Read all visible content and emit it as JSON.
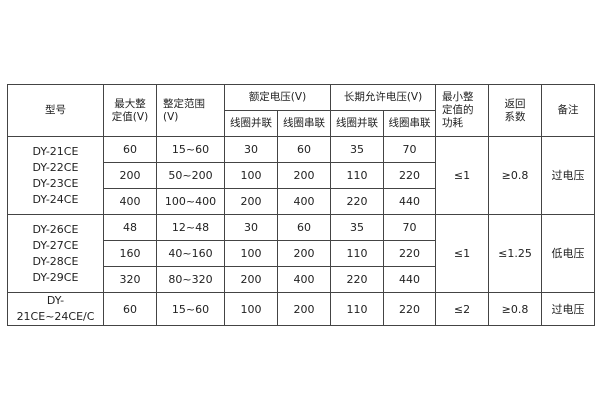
{
  "header": {
    "model": "型号",
    "max_setting": [
      "最大整",
      "定值(V)"
    ],
    "setting_range": [
      "整定范围",
      "(V)"
    ],
    "rated_voltage": "额定电压(V)",
    "long_term_voltage": "长期允许电压(V)",
    "parallel": "线圈并联",
    "series": "线圈串联",
    "min_power": [
      "最小整",
      "定值的",
      "功耗"
    ],
    "return_coef": [
      "返回",
      "系数"
    ],
    "remark": "备注"
  },
  "groups": [
    {
      "models": [
        "DY-21CE",
        "DY-22CE",
        "DY-23CE",
        "DY-24CE"
      ],
      "power": "≤1",
      "coef": "≥0.8",
      "remark": "过电压",
      "rows": [
        [
          "60",
          "15~60",
          "30",
          "60",
          "35",
          "70"
        ],
        [
          "200",
          "50~200",
          "100",
          "200",
          "110",
          "220"
        ],
        [
          "400",
          "100~400",
          "200",
          "400",
          "220",
          "440"
        ]
      ]
    },
    {
      "models": [
        "DY-26CE",
        "DY-27CE",
        "DY-28CE",
        "DY-29CE"
      ],
      "power": "≤1",
      "coef": "≤1.25",
      "remark": "低电压",
      "rows": [
        [
          "48",
          "12~48",
          "30",
          "60",
          "35",
          "70"
        ],
        [
          "160",
          "40~160",
          "100",
          "200",
          "110",
          "220"
        ],
        [
          "320",
          "80~320",
          "200",
          "400",
          "220",
          "440"
        ]
      ]
    },
    {
      "models": [
        "DY-21CE~24CE/C"
      ],
      "power": "≤2",
      "coef": "≥0.8",
      "remark": "过电压",
      "rows": [
        [
          "60",
          "15~60",
          "100",
          "200",
          "110",
          "220"
        ]
      ]
    }
  ]
}
